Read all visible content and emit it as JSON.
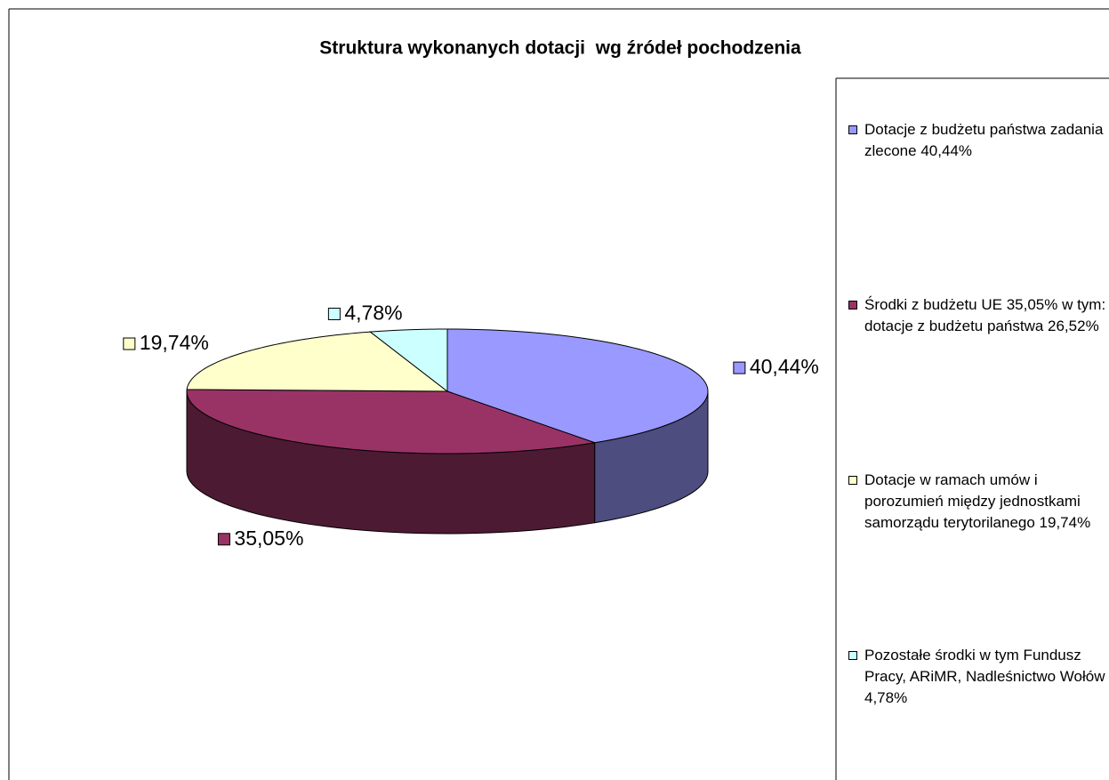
{
  "chart_data": {
    "type": "pie3d",
    "title": "Struktura wykonanych dotacji  wg źródeł pochodzenia",
    "categories": [
      "Dotacje z budżetu państwa zadania zlecone 40,44%",
      "Środki z budżetu UE 35,05% w tym: dotacje z budżetu państwa 26,52%",
      "Dotacje w ramach umów i porozumień między jednostkami samorządu terytorilanego 19,74%",
      "Pozostałe środki w tym Fundusz Pracy, ARiMR, Nadleśnictwo Wołów 4,78%"
    ],
    "values": [
      40.44,
      35.05,
      19.74,
      4.78
    ],
    "value_labels": [
      "40,44%",
      "35,05%",
      "19,74%",
      "4,78%"
    ],
    "colors": [
      "#9999ff",
      "#993366",
      "#ffffcc",
      "#ccffff"
    ],
    "legend": "right"
  }
}
